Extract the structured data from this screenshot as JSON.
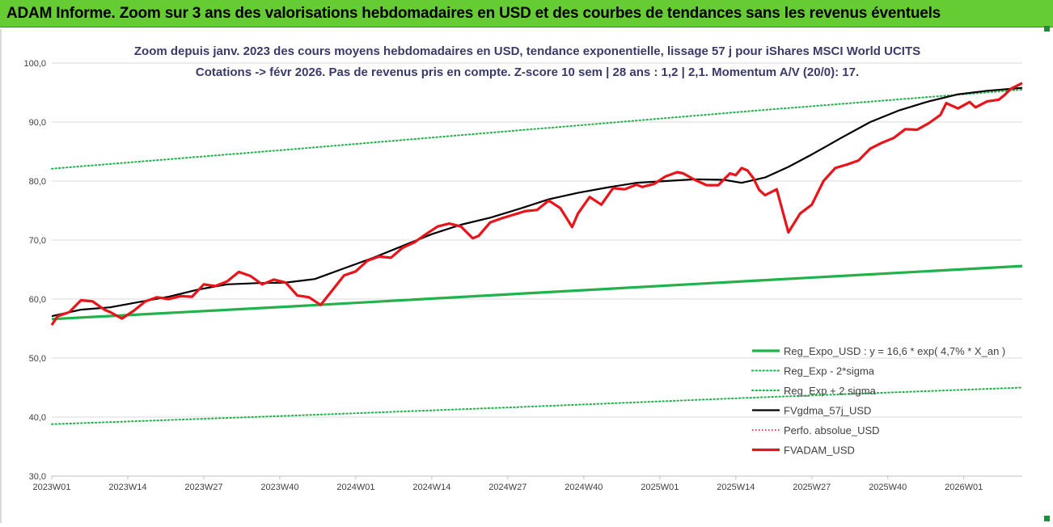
{
  "banner": {
    "title": "ADAM Informe. Zoom sur 3 ans des valorisations hebdomadaires en USD et des courbes de tendances sans les revenus éventuels",
    "background": "#66cc33"
  },
  "chart_data": {
    "type": "line",
    "title_line1": "Zoom depuis janv. 2023 des cours moyens hebdomadaires en USD, tendance exponentielle, lissage 57 j pour iShares MSCI World UCITS",
    "title_line2": "Cotations -> févr 2026. Pas de revenus pris en compte. Z-score 10 sem | 28 ans : 1,2 | 2,1. Momentum A/V (20/0): 17.",
    "x_ticks": [
      "2023W01",
      "2023W14",
      "2023W27",
      "2023W40",
      "2024W01",
      "2024W14",
      "2024W27",
      "2024W40",
      "2025W01",
      "2025W14",
      "2025W27",
      "2025W40",
      "2026W01"
    ],
    "x_range": [
      0,
      166
    ],
    "y_ticks": [
      "30,0",
      "40,0",
      "50,0",
      "60,0",
      "70,0",
      "80,0",
      "90,0",
      "100,0"
    ],
    "ylim": [
      30,
      100
    ],
    "grid": "horizontal",
    "legend_position": "bottom-right",
    "series": [
      {
        "name": "Reg_Expo_USD : y = 16,6 * exp( 4,7% *  X_an )",
        "color": "#22b24c",
        "style": "solid-thick",
        "x": [
          0,
          40,
          80,
          120,
          166
        ],
        "values": [
          56.6,
          58.7,
          60.9,
          63.1,
          65.6
        ]
      },
      {
        "name": "Reg_Exp - 2*sigma",
        "color": "#22b24c",
        "style": "dotted",
        "x": [
          0,
          40,
          80,
          120,
          166
        ],
        "values": [
          38.8,
          40.2,
          41.7,
          43.3,
          45.0
        ]
      },
      {
        "name": "Reg_Exp + 2 sigma",
        "color": "#22b24c",
        "style": "dotted",
        "x": [
          0,
          40,
          80,
          120,
          166
        ],
        "values": [
          82.1,
          85.3,
          88.6,
          91.9,
          95.5
        ]
      },
      {
        "name": "FVgdma_57j_USD",
        "color": "#000000",
        "style": "solid",
        "x": [
          0,
          5,
          10,
          15,
          20,
          25,
          30,
          35,
          40,
          45,
          50,
          55,
          60,
          65,
          70,
          75,
          80,
          85,
          90,
          95,
          100,
          105,
          110,
          115,
          118,
          122,
          126,
          130,
          135,
          140,
          145,
          150,
          155,
          160,
          166
        ],
        "values": [
          57.1,
          58.2,
          58.6,
          59.5,
          60.4,
          61.6,
          62.5,
          62.7,
          62.8,
          63.4,
          65.2,
          67.0,
          69.0,
          71.0,
          72.6,
          73.8,
          75.3,
          76.9,
          78.0,
          78.9,
          79.7,
          80.0,
          80.3,
          80.2,
          79.7,
          80.6,
          82.4,
          84.5,
          87.3,
          90.0,
          92.0,
          93.5,
          94.7,
          95.3,
          95.8
        ]
      },
      {
        "name": "Perfo. absolue_USD",
        "color": "#e00000",
        "style": "dotted-thin",
        "x": [],
        "values": []
      },
      {
        "name": "FVADAM_USD",
        "color": "#e8141a",
        "style": "solid-thick",
        "x": [
          0,
          1,
          3,
          5,
          7,
          9,
          10,
          12,
          14,
          16,
          18,
          20,
          22,
          24,
          26,
          28,
          30,
          32,
          34,
          36,
          38,
          40,
          42,
          44,
          46,
          48,
          50,
          52,
          54,
          56,
          58,
          60,
          62,
          64,
          66,
          68,
          70,
          72,
          73,
          75,
          77,
          79,
          81,
          83,
          85,
          87,
          89,
          90,
          92,
          94,
          96,
          98,
          100,
          101,
          103,
          105,
          107,
          108,
          110,
          112,
          114,
          116,
          117,
          118,
          119,
          120,
          121,
          122,
          124,
          126,
          128,
          130,
          132,
          134,
          136,
          138,
          140,
          142,
          144,
          146,
          148,
          150,
          152,
          153,
          155,
          157,
          158,
          160,
          162,
          163,
          164,
          166
        ],
        "values": [
          55.6,
          57.1,
          57.8,
          59.8,
          59.6,
          58.2,
          57.8,
          56.7,
          58.0,
          59.6,
          60.3,
          60.0,
          60.5,
          60.4,
          62.5,
          62.2,
          63.0,
          64.6,
          63.9,
          62.5,
          63.3,
          62.8,
          60.6,
          60.3,
          59.0,
          61.5,
          64.0,
          64.7,
          66.5,
          67.2,
          67.0,
          68.7,
          69.6,
          71.0,
          72.3,
          72.8,
          72.3,
          70.3,
          70.7,
          73.0,
          73.7,
          74.3,
          74.9,
          75.1,
          76.7,
          75.4,
          72.2,
          74.5,
          77.3,
          76.0,
          78.8,
          78.6,
          79.4,
          79.0,
          79.5,
          80.8,
          81.5,
          81.3,
          80.2,
          79.3,
          79.3,
          81.3,
          81.0,
          82.2,
          81.8,
          80.5,
          78.5,
          77.6,
          78.6,
          71.3,
          74.5,
          76.0,
          80.0,
          82.2,
          82.8,
          83.5,
          85.5,
          86.5,
          87.3,
          88.8,
          88.7,
          89.8,
          91.2,
          93.2,
          92.3,
          93.4,
          92.5,
          93.5,
          93.8,
          94.6,
          95.6,
          96.6
        ]
      }
    ]
  }
}
